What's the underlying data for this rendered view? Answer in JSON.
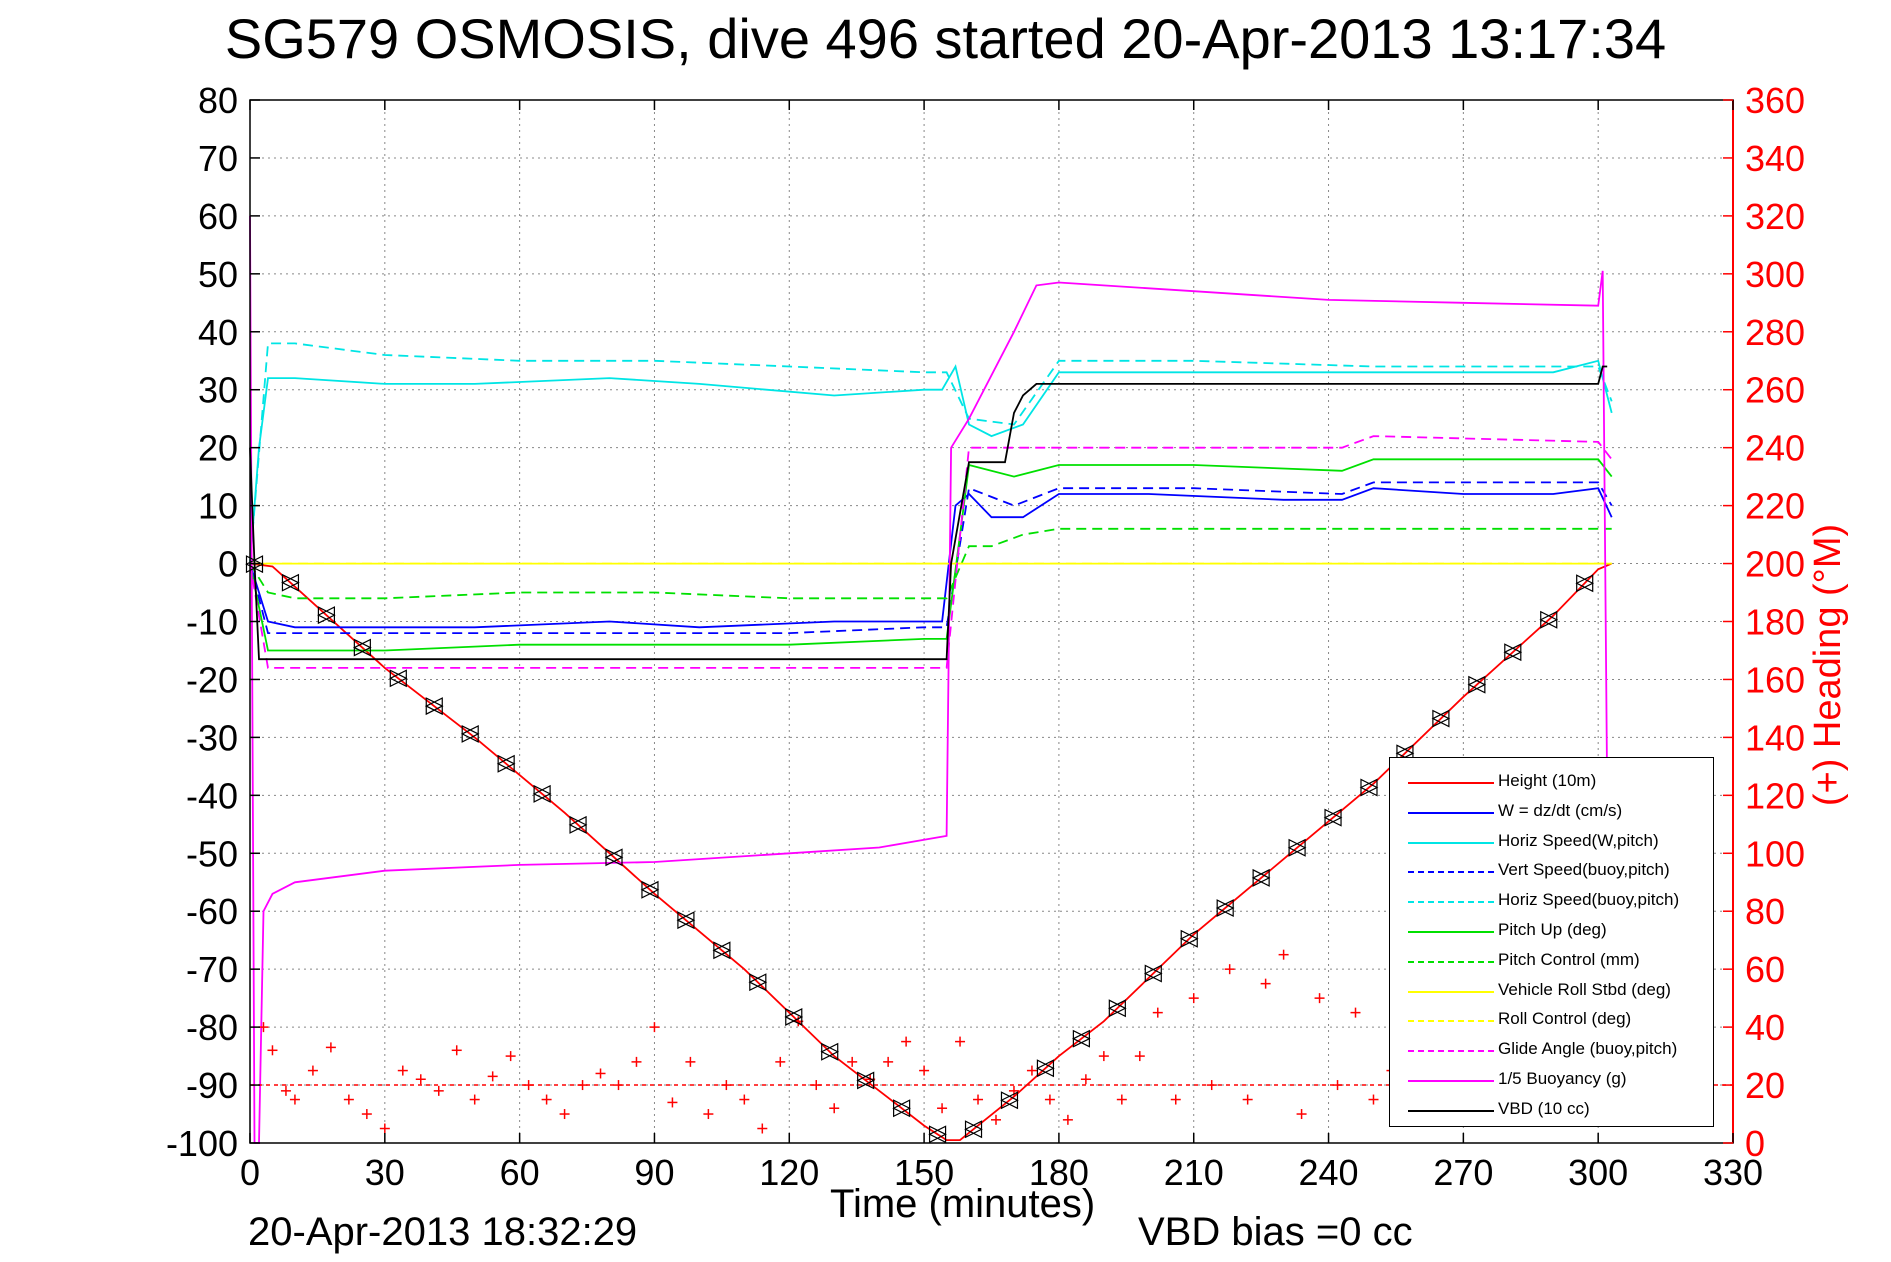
{
  "title": "SG579 OSMOSIS, dive 496 started 20-Apr-2013 13:17:34",
  "footer": {
    "timestamp": "20-Apr-2013 18:32:29",
    "vbd_bias": "VBD bias =0 cc"
  },
  "chart_data": {
    "type": "line",
    "xlabel": "Time (minutes)",
    "ylabel": "",
    "y2label": "(+) Heading (°M)",
    "xlim": [
      0,
      330
    ],
    "ylim": [
      -100,
      80
    ],
    "y2lim": [
      0,
      360
    ],
    "xticks": [
      0,
      30,
      60,
      90,
      120,
      150,
      180,
      210,
      240,
      270,
      300,
      330
    ],
    "yticks": [
      80,
      70,
      60,
      50,
      40,
      30,
      20,
      10,
      0,
      -10,
      -20,
      -30,
      -40,
      -50,
      -60,
      -70,
      -80,
      -90,
      -100
    ],
    "y2ticks": [
      360,
      340,
      320,
      300,
      280,
      260,
      240,
      220,
      200,
      180,
      160,
      140,
      120,
      100,
      80,
      60,
      40,
      20,
      0
    ],
    "grid": true,
    "legend_position": "bottom-right",
    "colors": {
      "height": "#ff0000",
      "w": "#0000ff",
      "horiz_speed": "#00e5e5",
      "pitch": "#00e000",
      "roll": "#ffff00",
      "glide": "#ff00ff",
      "vbd": "#000000",
      "heading": "#ff0000"
    },
    "series": [
      {
        "name": "Height (10m)",
        "color": "#ff0000",
        "dash": "solid",
        "x": [
          0,
          5,
          10,
          30,
          50,
          70,
          90,
          110,
          130,
          140,
          150,
          155,
          158,
          162,
          170,
          180,
          190,
          210,
          230,
          250,
          270,
          290,
          300,
          303
        ],
        "y": [
          0,
          -0.5,
          -4,
          -18,
          -30,
          -43,
          -57,
          -70,
          -85,
          -91,
          -97,
          -99.5,
          -99.5,
          -97,
          -92,
          -85,
          -79,
          -64,
          -51,
          -38,
          -23,
          -9,
          -1,
          0
        ]
      },
      {
        "name": "W = dz/dt (cm/s)",
        "color": "#0000ff",
        "dash": "solid",
        "x": [
          0,
          2,
          4,
          10,
          30,
          50,
          80,
          100,
          130,
          150,
          154,
          157,
          160,
          165,
          172,
          180,
          200,
          230,
          243,
          250,
          270,
          290,
          300,
          303
        ],
        "y": [
          0,
          -5,
          -10,
          -11,
          -11,
          -11,
          -10,
          -11,
          -10,
          -10,
          -10,
          10,
          12,
          8,
          8,
          12,
          12,
          11,
          11,
          13,
          12,
          12,
          13,
          8
        ]
      },
      {
        "name": "Horiz Speed(W,pitch)",
        "color": "#00e5e5",
        "dash": "solid",
        "x": [
          0,
          2,
          4,
          10,
          30,
          50,
          80,
          100,
          130,
          150,
          154,
          157,
          160,
          165,
          172,
          180,
          200,
          230,
          250,
          270,
          290,
          300,
          303
        ],
        "y": [
          0,
          20,
          32,
          32,
          31,
          31,
          32,
          31,
          29,
          30,
          30,
          34,
          24,
          22,
          24,
          33,
          33,
          33,
          33,
          33,
          33,
          35,
          26
        ]
      },
      {
        "name": "Vert Speed(buoy,pitch)",
        "color": "#0000ff",
        "dash": "dashed",
        "x": [
          0,
          4,
          10,
          30,
          60,
          90,
          120,
          150,
          155,
          160,
          170,
          180,
          210,
          243,
          250,
          280,
          300,
          303
        ],
        "y": [
          0,
          -12,
          -12,
          -12,
          -12,
          -12,
          -12,
          -11,
          -11,
          13,
          10,
          13,
          13,
          12,
          14,
          14,
          14,
          10
        ]
      },
      {
        "name": "Horiz Speed(buoy,pitch)",
        "color": "#00e5e5",
        "dash": "dashed",
        "x": [
          0,
          4,
          10,
          30,
          60,
          90,
          120,
          150,
          155,
          160,
          170,
          180,
          210,
          250,
          300,
          303
        ],
        "y": [
          0,
          38,
          38,
          36,
          35,
          35,
          34,
          33,
          33,
          25,
          24,
          35,
          35,
          34,
          34,
          28
        ]
      },
      {
        "name": "Pitch Up (deg)",
        "color": "#00e000",
        "dash": "solid",
        "x": [
          0,
          4,
          10,
          30,
          60,
          90,
          120,
          150,
          155,
          160,
          170,
          180,
          210,
          243,
          250,
          300,
          303
        ],
        "y": [
          0,
          -15,
          -15,
          -15,
          -14,
          -14,
          -14,
          -13,
          -13,
          17,
          15,
          17,
          17,
          16,
          18,
          18,
          15
        ]
      },
      {
        "name": "Pitch Control (mm)",
        "color": "#00e000",
        "dash": "dashed",
        "x": [
          0,
          4,
          10,
          30,
          60,
          90,
          120,
          150,
          155,
          160,
          165,
          172,
          180,
          210,
          250,
          300,
          303
        ],
        "y": [
          0,
          -5,
          -6,
          -6,
          -5,
          -5,
          -6,
          -6,
          -6,
          3,
          3,
          5,
          6,
          6,
          6,
          6,
          6
        ]
      },
      {
        "name": "Vehicle Roll Stbd (deg)",
        "color": "#ffff00",
        "dash": "solid",
        "x": [
          0,
          5,
          10,
          30,
          60,
          90,
          120,
          150,
          155,
          160,
          180,
          200,
          220,
          240,
          260,
          280,
          300,
          303
        ],
        "y": [
          0,
          0,
          0,
          0,
          0,
          0,
          0,
          0,
          0,
          0,
          0,
          0,
          0,
          0,
          0,
          0,
          0,
          0
        ]
      },
      {
        "name": "Roll Control (deg)",
        "color": "#ffff00",
        "dash": "dashed",
        "x": [
          0,
          5,
          10,
          30,
          60,
          90,
          120,
          150,
          155,
          160,
          180,
          200,
          220,
          240,
          260,
          280,
          300,
          303
        ],
        "y": [
          0,
          0,
          0,
          0,
          0,
          0,
          0,
          0,
          0,
          0,
          0,
          0,
          0,
          0,
          0,
          0,
          0,
          0
        ]
      },
      {
        "name": "Glide Angle (buoy,pitch)",
        "color": "#ff00ff",
        "dash": "dashed",
        "x": [
          0,
          4,
          10,
          30,
          60,
          90,
          120,
          150,
          155,
          160,
          170,
          180,
          210,
          243,
          250,
          300,
          303
        ],
        "y": [
          0,
          -18,
          -18,
          -18,
          -18,
          -18,
          -18,
          -18,
          -18,
          20,
          20,
          20,
          20,
          20,
          22,
          21,
          18
        ]
      },
      {
        "name": "1/5 Buoyancy (g)",
        "color": "#ff00ff",
        "dash": "solid",
        "x": [
          0,
          1,
          2,
          3,
          5,
          10,
          30,
          60,
          90,
          120,
          140,
          155,
          156,
          160,
          170,
          175,
          180,
          210,
          240,
          270,
          300,
          301,
          302
        ],
        "y": [
          60,
          -100,
          -100,
          -60,
          -57,
          -55,
          -53,
          -52,
          -51.5,
          -50,
          -49,
          -47,
          20,
          25,
          40,
          48,
          48.5,
          47,
          45.5,
          45,
          44.5,
          50.5,
          -40
        ]
      },
      {
        "name": "VBD (10 cc)",
        "color": "#000000",
        "dash": "solid",
        "x": [
          0,
          1,
          2,
          3,
          155,
          156,
          160,
          168,
          170,
          172,
          175,
          180,
          240,
          300,
          301,
          302
        ],
        "y": [
          20,
          0,
          -16.5,
          -16.5,
          -16.5,
          0,
          17.5,
          17.5,
          26,
          29,
          31,
          31,
          31,
          31,
          34,
          34
        ]
      }
    ],
    "heading": {
      "name": "(+) Heading (°M)",
      "axis": "right",
      "color": "#ff0000",
      "marker": "+",
      "target_value": 20,
      "x": [
        3,
        5,
        8,
        10,
        14,
        18,
        22,
        26,
        30,
        34,
        38,
        42,
        46,
        50,
        54,
        58,
        62,
        66,
        70,
        74,
        78,
        82,
        86,
        90,
        94,
        98,
        102,
        106,
        110,
        114,
        118,
        122,
        126,
        130,
        134,
        138,
        142,
        146,
        150,
        154,
        158,
        162,
        166,
        170,
        174,
        178,
        182,
        186,
        190,
        194,
        198,
        202,
        206,
        210,
        214,
        218,
        222,
        226,
        230,
        234,
        238,
        242,
        246,
        250,
        254
      ],
      "y": [
        40,
        32,
        18,
        15,
        25,
        33,
        15,
        10,
        5,
        25,
        22,
        18,
        32,
        15,
        23,
        30,
        20,
        15,
        10,
        20,
        24,
        20,
        28,
        40,
        14,
        28,
        10,
        20,
        15,
        5,
        28,
        42,
        20,
        12,
        28,
        22,
        28,
        35,
        25,
        12,
        35,
        15,
        8,
        18,
        25,
        15,
        8,
        22,
        30,
        15,
        30,
        45,
        15,
        50,
        20,
        60,
        15,
        55,
        65,
        10,
        50,
        20,
        45,
        15,
        25
      ]
    },
    "dive_markers": {
      "symbols": [
        "triangle-left",
        "triangle-right",
        "triangle-down"
      ],
      "color": "#000000"
    }
  },
  "legend": [
    {
      "label": "Height (10m)",
      "color": "#ff0000",
      "dash": "solid"
    },
    {
      "label": "W = dz/dt (cm/s)",
      "color": "#0000ff",
      "dash": "solid"
    },
    {
      "label": "Horiz Speed(W,pitch)",
      "color": "#00e5e5",
      "dash": "solid"
    },
    {
      "label": "Vert Speed(buoy,pitch)",
      "color": "#0000ff",
      "dash": "dashed"
    },
    {
      "label": "Horiz Speed(buoy,pitch)",
      "color": "#00e5e5",
      "dash": "dashed"
    },
    {
      "label": "Pitch Up (deg)",
      "color": "#00e000",
      "dash": "solid"
    },
    {
      "label": "Pitch Control (mm)",
      "color": "#00e000",
      "dash": "dashed"
    },
    {
      "label": "Vehicle Roll Stbd (deg)",
      "color": "#ffff00",
      "dash": "solid"
    },
    {
      "label": "Roll Control (deg)",
      "color": "#ffff00",
      "dash": "dashed"
    },
    {
      "label": "Glide Angle (buoy,pitch)",
      "color": "#ff00ff",
      "dash": "dashed"
    },
    {
      "label": "1/5 Buoyancy (g)",
      "color": "#ff00ff",
      "dash": "solid"
    },
    {
      "label": "VBD (10 cc)",
      "color": "#000000",
      "dash": "solid"
    }
  ]
}
